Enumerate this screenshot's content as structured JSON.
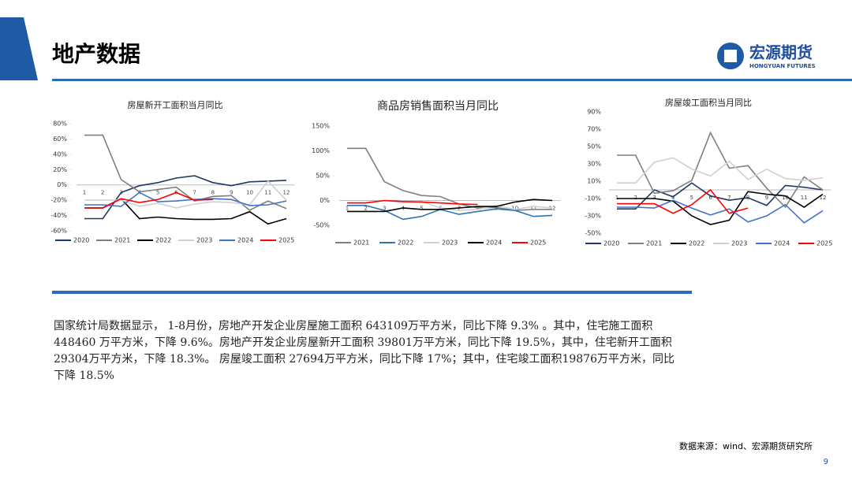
{
  "header": {
    "title": "地产数据",
    "logo_cn": "宏源期货",
    "logo_en": "HONGYUAN FUTURES"
  },
  "chart_data": [
    {
      "type": "line",
      "title": "房屋新开工面积当月同比",
      "categories": [
        "1",
        "2",
        "3",
        "4",
        "5",
        "6",
        "7",
        "8",
        "9",
        "10",
        "11",
        "12"
      ],
      "ylim": [
        -60,
        80
      ],
      "yticks": [
        {
          "value": -60,
          "label": "-60%"
        },
        {
          "value": -40,
          "label": "-40%"
        },
        {
          "value": -20,
          "label": "-20%"
        },
        {
          "value": 0,
          "label": "0%"
        },
        {
          "value": 20,
          "label": "20%"
        },
        {
          "value": 40,
          "label": "40%"
        },
        {
          "value": 60,
          "label": "60%"
        },
        {
          "value": 80,
          "label": "80%"
        }
      ],
      "series": [
        {
          "name": "2020",
          "color": "#1f3864",
          "values": [
            -44,
            -44,
            -10,
            -1,
            3,
            9,
            12,
            3,
            -1,
            4,
            5,
            6
          ]
        },
        {
          "name": "2021",
          "color": "#7f7f7f",
          "values": [
            65,
            65,
            7,
            -9,
            -6,
            -3,
            -21,
            -15,
            -14,
            -33,
            -21,
            -31
          ]
        },
        {
          "name": "2022",
          "color": "#000000",
          "values": [
            -30,
            -30,
            -18,
            -44,
            -42,
            -44,
            -45,
            -45,
            -44,
            -35,
            -51,
            -44
          ]
        },
        {
          "name": "2023",
          "color": "#d0d0d0",
          "values": [
            -20,
            -20,
            -20,
            -28,
            -24,
            -30,
            -25,
            -22,
            -23,
            -26,
            5,
            -20
          ]
        },
        {
          "name": "2024",
          "color": "#4472c4",
          "values": [
            -26,
            -26,
            -28,
            -10,
            -22,
            -21,
            -19,
            -18,
            -19,
            -27,
            -26,
            -21
          ]
        },
        {
          "name": "2025",
          "color": "#ff0000",
          "values": [
            -30,
            -30,
            -18,
            -23,
            -19,
            -10,
            -20,
            -19,
            null,
            null,
            null,
            null
          ]
        }
      ]
    },
    {
      "type": "line",
      "title": "商品房销售面积当月同比",
      "categories": [
        "1",
        "2",
        "3",
        "4",
        "5",
        "6",
        "7",
        "8",
        "9",
        "10",
        "11",
        "12"
      ],
      "ylim": [
        -50,
        150
      ],
      "yticks": [
        {
          "value": -50,
          "label": "-50%"
        },
        {
          "value": 0,
          "label": "0%"
        },
        {
          "value": 50,
          "label": "50%"
        },
        {
          "value": 100,
          "label": "100%"
        },
        {
          "value": 150,
          "label": "150%"
        }
      ],
      "series": [
        {
          "name": "2021",
          "color": "#7f7f7f",
          "values": [
            105,
            105,
            38,
            20,
            10,
            8,
            -7,
            -15,
            -14,
            -20,
            -18,
            -18
          ]
        },
        {
          "name": "2022",
          "color": "#2e75b6",
          "values": [
            -10,
            -10,
            -20,
            -38,
            -32,
            -18,
            -28,
            -22,
            -17,
            -20,
            -32,
            -30
          ]
        },
        {
          "name": "2023",
          "color": "#d0d0d0",
          "values": [
            -5,
            -5,
            0,
            -4,
            -2,
            -15,
            -20,
            -18,
            -10,
            -18,
            -12,
            -15
          ]
        },
        {
          "name": "2024",
          "color": "#000000",
          "values": [
            -22,
            -22,
            -22,
            -15,
            -18,
            -18,
            -15,
            -12,
            -12,
            -3,
            2,
            0
          ]
        },
        {
          "name": "2025",
          "color": "#ff0000",
          "values": [
            -5,
            -5,
            0,
            -2,
            -3,
            -5,
            -7,
            -8,
            null,
            null,
            null,
            null
          ]
        }
      ]
    },
    {
      "type": "line",
      "title": "房屋竣工面积当月同比",
      "categories": [
        "1",
        "2",
        "3",
        "4",
        "5",
        "6",
        "7",
        "8",
        "9",
        "10",
        "11",
        "12"
      ],
      "ylim": [
        -50,
        90
      ],
      "yticks": [
        {
          "value": -50,
          "label": "-50%"
        },
        {
          "value": -30,
          "label": "-30%"
        },
        {
          "value": -10,
          "label": "-10%"
        },
        {
          "value": 10,
          "label": "10%"
        },
        {
          "value": 30,
          "label": "30%"
        },
        {
          "value": 50,
          "label": "50%"
        },
        {
          "value": 70,
          "label": "70%"
        },
        {
          "value": 90,
          "label": "90%"
        }
      ],
      "series": [
        {
          "name": "2020",
          "color": "#1f3864",
          "values": [
            -22,
            -22,
            0,
            -8,
            8,
            -7,
            -12,
            -9,
            -18,
            5,
            3,
            0
          ]
        },
        {
          "name": "2021",
          "color": "#7f7f7f",
          "values": [
            40,
            40,
            -4,
            -1,
            11,
            66,
            25,
            28,
            2,
            -20,
            15,
            0
          ]
        },
        {
          "name": "2022",
          "color": "#000000",
          "values": [
            -10,
            -10,
            -10,
            -13,
            -30,
            -40,
            -35,
            -2,
            -5,
            -7,
            -20,
            -5
          ]
        },
        {
          "name": "2023",
          "color": "#d0d0d0",
          "values": [
            8,
            8,
            32,
            37,
            24,
            16,
            33,
            12,
            24,
            13,
            11,
            14
          ]
        },
        {
          "name": "2024",
          "color": "#4472c4",
          "values": [
            -20,
            -20,
            -21,
            -12,
            -21,
            -29,
            -22,
            -37,
            -30,
            -17,
            -38,
            -24
          ]
        },
        {
          "name": "2025",
          "color": "#ff0000",
          "values": [
            -16,
            -16,
            -16,
            -27,
            -17,
            0,
            -27,
            -21,
            null,
            null,
            null,
            null
          ]
        }
      ]
    }
  ],
  "text": "国家统计局数据显示， 1-8月份，房地产开发企业房屋施工面积 643109万平方米，同比下降 9.3% 。其中，住宅施工面积 448460 万平方米，下降 9.6%。房地产开发企业房屋新开工面积 39801万平方米，同比下降 19.5%，其中，住宅新开工面积 29304万平方米，下降 18.3%。 房屋竣工面积 27694万平方米，同比下降 17%；其中，住宅竣工面积19876万平方米，同比下降 18.5%",
  "source": "数据来源：wind、宏源期货研究所",
  "page": "9"
}
